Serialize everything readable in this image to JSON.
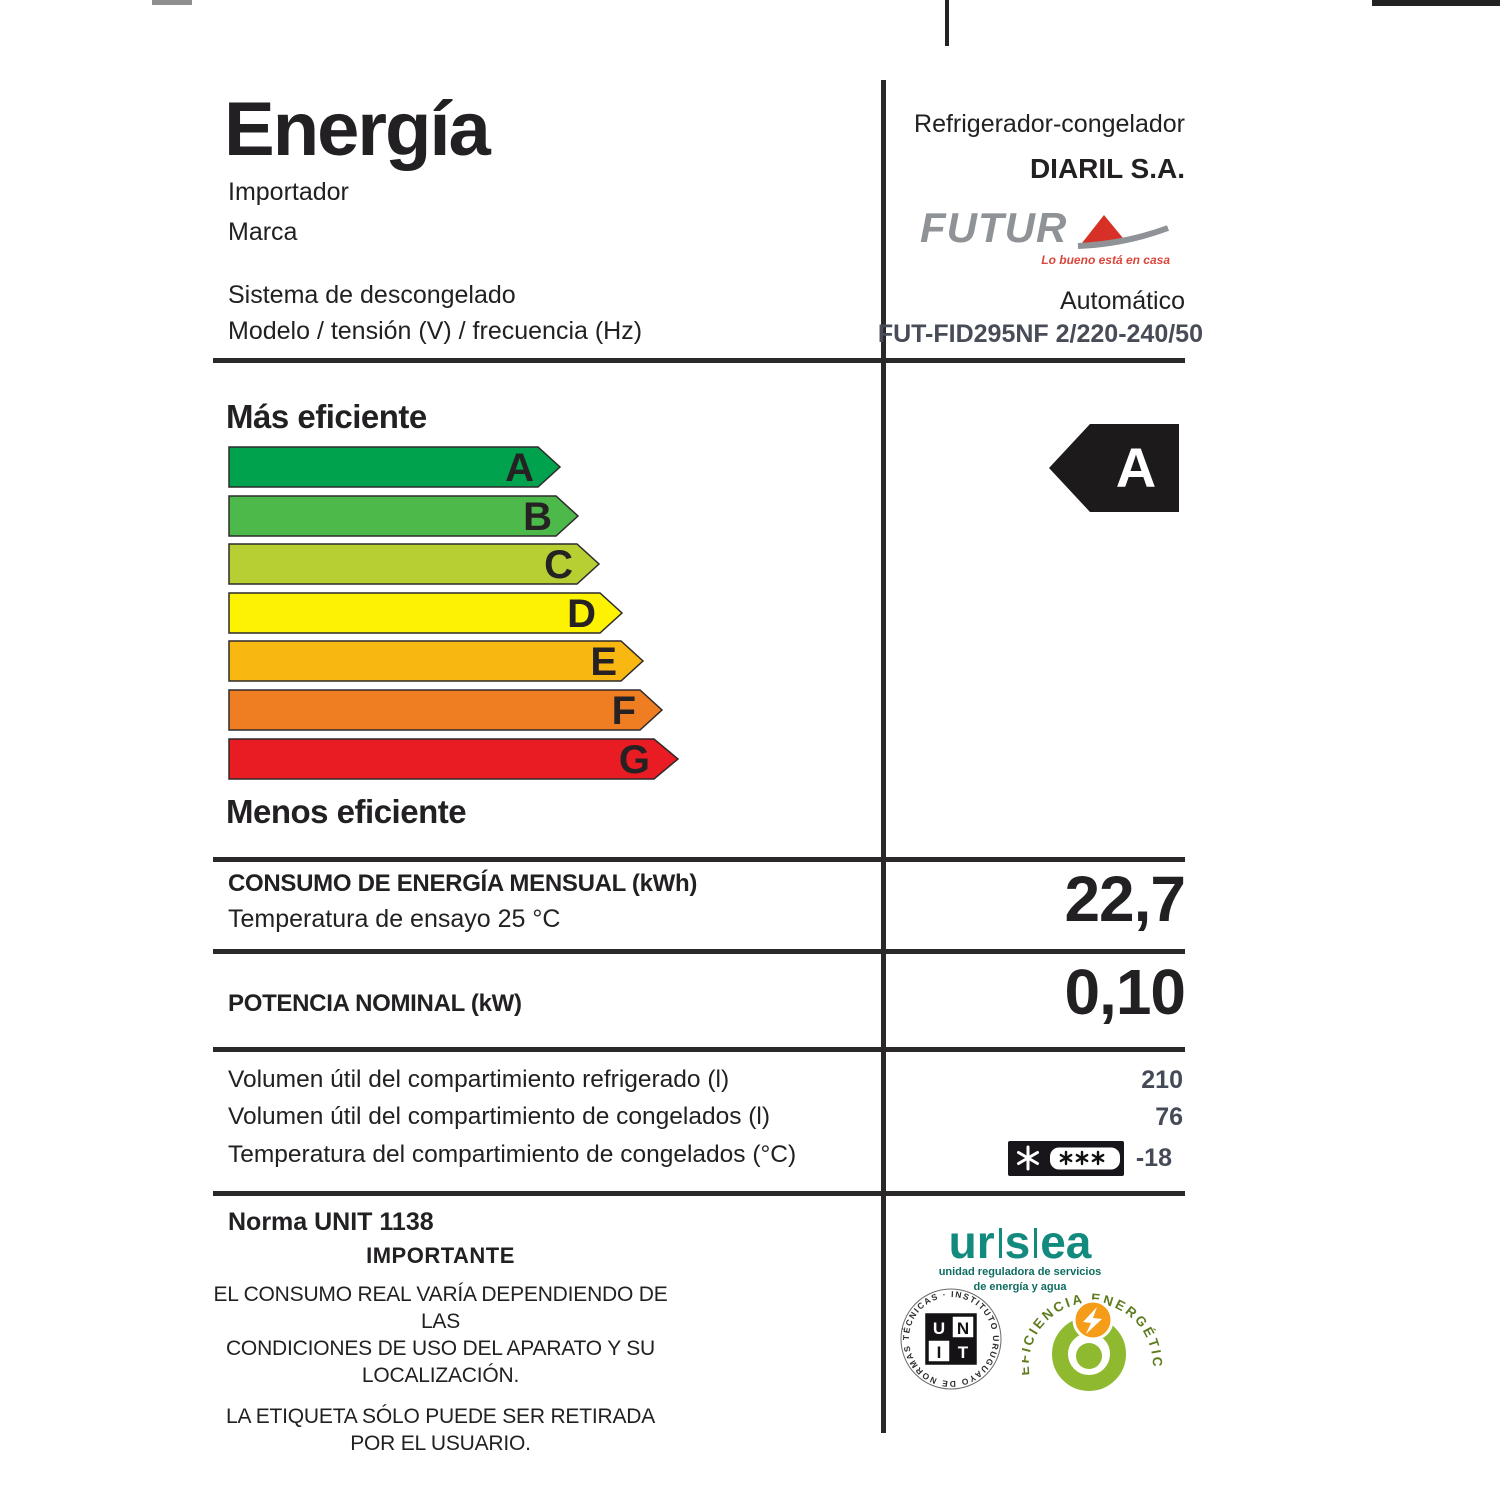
{
  "header": {
    "title": "Energía",
    "importer_label": "Importador",
    "brand_label": "Marca",
    "defrost_label": "Sistema de descongelado",
    "model_label": "Modelo / tensión (V) / frecuencia (Hz)",
    "category": "Refrigerador-congelador",
    "importer_value": "DIARIL S.A.",
    "brand_wordmark": "FUTUR",
    "brand_tagline": "Lo bueno está en casa",
    "defrost_value": "Automático",
    "model_value": "FUT-FID295NF 2/220-240/50"
  },
  "scale": {
    "more_label": "Más eficiente",
    "less_label": "Menos eficiente",
    "rating": "A",
    "grades": [
      {
        "letter": "A",
        "color": "#00a24d",
        "total_width": 334,
        "tip_width": 24
      },
      {
        "letter": "B",
        "color": "#4eb94b",
        "total_width": 352,
        "tip_width": 24
      },
      {
        "letter": "C",
        "color": "#b8cf33",
        "total_width": 373,
        "tip_width": 24
      },
      {
        "letter": "D",
        "color": "#fef203",
        "total_width": 396,
        "tip_width": 24
      },
      {
        "letter": "E",
        "color": "#f9b712",
        "total_width": 417,
        "tip_width": 24
      },
      {
        "letter": "F",
        "color": "#ef7e23",
        "total_width": 436,
        "tip_width": 24
      },
      {
        "letter": "G",
        "color": "#e91c23",
        "total_width": 452,
        "tip_width": 26
      }
    ]
  },
  "consumption": {
    "label": "CONSUMO DE ENERGÍA MENSUAL (kWh)",
    "sublabel": "Temperatura de ensayo  25 °C",
    "value": "22,7"
  },
  "power": {
    "label": "POTENCIA NOMINAL (kW)",
    "value": "0,10"
  },
  "volumes": {
    "rows": [
      {
        "label": "Volumen útil del compartimiento refrigerado (l)",
        "value": "210"
      },
      {
        "label": "Volumen útil del compartimiento de congelados (l)",
        "value": "76"
      },
      {
        "label": "Temperatura del compartimiento de congelados (°C)",
        "value": "-18"
      }
    ],
    "freezer_badge": {
      "type": "4-star-freezer",
      "stars_outside": 1,
      "stars_inside": 3
    }
  },
  "footer": {
    "norm": "Norma UNIT 1138",
    "important_title": "IMPORTANTE",
    "p1l1": "EL CONSUMO REAL VARÍA DEPENDIENDO DE LAS",
    "p1l2": "CONDICIONES DE USO DEL APARATO Y SU LOCALIZACIÓN.",
    "p2l1": "LA ETIQUETA SÓLO PUEDE SER RETIRADA",
    "p2l2": "POR EL USUARIO.",
    "ursea_parts": [
      "ur",
      "s",
      "ea"
    ],
    "ursea_sub1": "unidad reguladora de servicios",
    "ursea_sub2": "de energía y agua",
    "unit_ring_text": "INSTITUTO URUGUAYO DE NORMAS TÉCNICAS · ",
    "unit_letters": [
      "U",
      "N",
      "I",
      "T"
    ],
    "efficiency_arc_text": "EFICIENCIA ENERGÉTICA"
  },
  "colors": {
    "ink": "#232023",
    "slate_value": "#454b56",
    "ursea_teal": "#128a7d",
    "futura_gray": "#8f9296",
    "futura_red": "#d73127",
    "efficiency_green": "#8fba2f",
    "efficiency_orange": "#f59d18",
    "rating_arrow_black": "#1d1a1b"
  }
}
